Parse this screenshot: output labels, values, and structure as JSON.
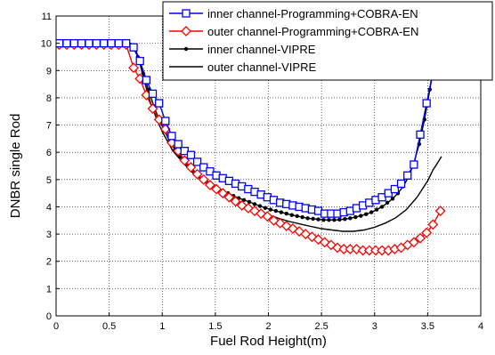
{
  "chart_data": {
    "type": "line",
    "xlabel": "Fuel Rod Height(m)",
    "ylabel": "DNBR single Rod",
    "xlim": [
      0,
      4
    ],
    "ylim": [
      0,
      11
    ],
    "xticks": [
      "0",
      "0.5",
      "1",
      "1.5",
      "2",
      "2.5",
      "3",
      "3.5",
      "4"
    ],
    "yticks": [
      "0",
      "1",
      "2",
      "3",
      "4",
      "5",
      "6",
      "7",
      "8",
      "9",
      "10",
      "11"
    ],
    "grid": "dotted",
    "legend_position": "top-right",
    "series": [
      {
        "name": "inner channel-Programming+COBRA-EN",
        "color": "#0000ff",
        "marker": "square",
        "x": [
          0.03,
          0.1,
          0.17,
          0.24,
          0.31,
          0.38,
          0.45,
          0.52,
          0.59,
          0.66,
          0.73,
          0.79,
          0.85,
          0.91,
          0.97,
          1.03,
          1.09,
          1.15,
          1.21,
          1.27,
          1.33,
          1.39,
          1.45,
          1.51,
          1.57,
          1.63,
          1.69,
          1.75,
          1.81,
          1.87,
          1.93,
          1.99,
          2.05,
          2.11,
          2.17,
          2.23,
          2.29,
          2.35,
          2.41,
          2.47,
          2.53,
          2.59,
          2.65,
          2.71,
          2.77,
          2.83,
          2.89,
          2.95,
          3.01,
          3.07,
          3.13,
          3.19,
          3.25,
          3.31,
          3.37,
          3.43,
          3.49,
          3.55,
          3.6
        ],
        "y": [
          10,
          10,
          10,
          10,
          10,
          10,
          10,
          10,
          10,
          10,
          9.85,
          9.35,
          8.65,
          8.15,
          7.8,
          7.15,
          6.6,
          6.3,
          6.05,
          5.9,
          5.65,
          5.45,
          5.3,
          5.15,
          5.05,
          4.95,
          4.85,
          4.75,
          4.65,
          4.55,
          4.45,
          4.35,
          4.25,
          4.15,
          4.1,
          4.05,
          4.0,
          3.95,
          3.9,
          3.85,
          3.75,
          3.75,
          3.75,
          3.8,
          3.85,
          3.95,
          4.05,
          4.15,
          4.25,
          4.35,
          4.5,
          4.65,
          4.85,
          5.15,
          5.55,
          6.65,
          7.8,
          8.95,
          10.4
        ]
      },
      {
        "name": "outer channel-Programming+COBRA-EN",
        "color": "#ff0000",
        "marker": "diamond",
        "x": [
          0.03,
          0.1,
          0.17,
          0.24,
          0.31,
          0.38,
          0.45,
          0.52,
          0.59,
          0.66,
          0.73,
          0.79,
          0.85,
          0.91,
          0.97,
          1.03,
          1.09,
          1.15,
          1.21,
          1.27,
          1.33,
          1.39,
          1.45,
          1.51,
          1.57,
          1.63,
          1.69,
          1.75,
          1.81,
          1.87,
          1.93,
          1.99,
          2.05,
          2.11,
          2.17,
          2.23,
          2.29,
          2.35,
          2.41,
          2.47,
          2.53,
          2.59,
          2.65,
          2.71,
          2.77,
          2.83,
          2.89,
          2.95,
          3.01,
          3.07,
          3.13,
          3.19,
          3.25,
          3.31,
          3.37,
          3.43,
          3.49,
          3.55,
          3.62
        ],
        "y": [
          9.95,
          9.95,
          9.95,
          9.95,
          9.95,
          9.95,
          9.95,
          9.95,
          9.95,
          9.95,
          9.1,
          8.7,
          8.1,
          7.6,
          7.2,
          6.85,
          6.35,
          6.05,
          5.7,
          5.45,
          5.2,
          5.0,
          4.8,
          4.65,
          4.5,
          4.35,
          4.2,
          4.05,
          3.95,
          3.85,
          3.75,
          3.65,
          3.5,
          3.4,
          3.3,
          3.2,
          3.1,
          3.0,
          2.9,
          2.8,
          2.7,
          2.6,
          2.5,
          2.45,
          2.45,
          2.45,
          2.4,
          2.4,
          2.4,
          2.4,
          2.4,
          2.45,
          2.5,
          2.6,
          2.7,
          2.85,
          3.05,
          3.35,
          3.85
        ]
      },
      {
        "name": "inner channel-VIPRE",
        "color": "#000000",
        "marker": "dot",
        "x": [
          0.03,
          0.1,
          0.17,
          0.24,
          0.31,
          0.38,
          0.45,
          0.52,
          0.59,
          0.66,
          0.72,
          0.77,
          0.82,
          0.87,
          0.92,
          0.97,
          1.02,
          1.07,
          1.12,
          1.17,
          1.22,
          1.27,
          1.32,
          1.37,
          1.42,
          1.47,
          1.52,
          1.57,
          1.62,
          1.67,
          1.72,
          1.77,
          1.82,
          1.87,
          1.92,
          1.97,
          2.02,
          2.07,
          2.12,
          2.17,
          2.22,
          2.27,
          2.32,
          2.37,
          2.42,
          2.47,
          2.52,
          2.57,
          2.62,
          2.67,
          2.72,
          2.77,
          2.82,
          2.87,
          2.92,
          2.97,
          3.02,
          3.07,
          3.12,
          3.17,
          3.22,
          3.27,
          3.32,
          3.37,
          3.42,
          3.47,
          3.52,
          3.57,
          3.62
        ],
        "y": [
          10,
          10,
          10,
          10,
          10,
          10,
          10,
          10,
          10,
          10,
          9.9,
          9.5,
          8.9,
          8.3,
          7.7,
          7.2,
          6.8,
          6.4,
          6.1,
          5.85,
          5.6,
          5.4,
          5.2,
          5.05,
          4.9,
          4.8,
          4.7,
          4.6,
          4.5,
          4.4,
          4.32,
          4.25,
          4.18,
          4.1,
          4.03,
          3.96,
          3.9,
          3.85,
          3.8,
          3.75,
          3.7,
          3.66,
          3.62,
          3.58,
          3.56,
          3.54,
          3.52,
          3.52,
          3.52,
          3.53,
          3.55,
          3.58,
          3.62,
          3.67,
          3.73,
          3.8,
          3.9,
          4.0,
          4.15,
          4.3,
          4.5,
          4.75,
          5.1,
          5.6,
          6.3,
          7.2,
          8.3,
          9.4,
          10.6
        ]
      },
      {
        "name": "outer channel-VIPRE",
        "color": "#000000",
        "marker": "none",
        "x": [
          0.03,
          0.2,
          0.4,
          0.6,
          0.7,
          0.74,
          0.78,
          0.82,
          0.86,
          0.9,
          0.95,
          1.0,
          1.05,
          1.1,
          1.2,
          1.3,
          1.4,
          1.5,
          1.6,
          1.7,
          1.8,
          1.9,
          2.0,
          2.1,
          2.2,
          2.3,
          2.4,
          2.5,
          2.6,
          2.7,
          2.8,
          2.9,
          3.0,
          3.1,
          3.2,
          3.3,
          3.4,
          3.5,
          3.55,
          3.6,
          3.63
        ],
        "y": [
          10,
          10,
          10,
          10,
          10,
          9.9,
          9.4,
          8.8,
          8.2,
          7.7,
          7.2,
          6.75,
          6.4,
          6.05,
          5.6,
          5.2,
          4.9,
          4.65,
          4.4,
          4.2,
          4.0,
          3.85,
          3.7,
          3.57,
          3.46,
          3.37,
          3.28,
          3.2,
          3.15,
          3.1,
          3.1,
          3.15,
          3.25,
          3.4,
          3.6,
          3.9,
          4.35,
          4.95,
          5.35,
          5.65,
          5.85
        ]
      }
    ]
  }
}
